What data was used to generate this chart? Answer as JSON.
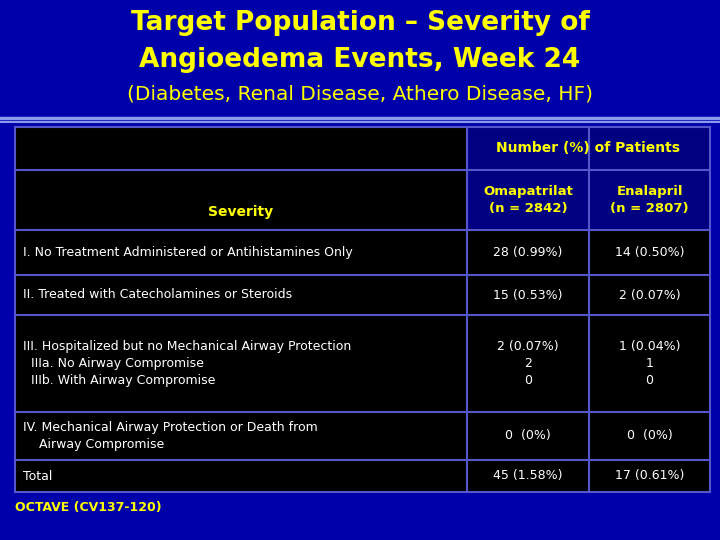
{
  "title_line1": "Target Population – Severity of",
  "title_line2": "Angioedema Events, Week 24",
  "title_line3": "(Diabetes, Renal Disease, Athero Disease, HF)",
  "bg_color": "#0000AA",
  "title_color": "#FFFF00",
  "table_bg": "#000000",
  "table_header_bg": "#000080",
  "table_border_color": "#5555CC",
  "header_text_color": "#FFFF00",
  "body_text_color": "#FFFFFF",
  "footer_text": "OCTAVE (CV137-120)",
  "footer_color": "#FFFF00",
  "sep_line_color": "#6699FF",
  "col_header_row1": "Number (%) of Patients",
  "col_header_omap": "Omapatrilat\n(n = 2842)",
  "col_header_enal": "Enalapril\n(n = 2807)",
  "col_label": "Severity",
  "rows": [
    {
      "label": "I. No Treatment Administered or Antihistamines Only",
      "omap": "28 (0.99%)",
      "enal": "14 (0.50%)",
      "multiline": false
    },
    {
      "label": "II. Treated with Catecholamines or Steroids",
      "omap": "15 (0.53%)",
      "enal": "2 (0.07%)",
      "multiline": false
    },
    {
      "label": "III. Hospitalized but no Mechanical Airway Protection\n  IIIa. No Airway Compromise\n  IIIb. With Airway Compromise",
      "omap": "2 (0.07%)\n2\n0",
      "enal": "1 (0.04%)\n1\n0",
      "multiline": true
    },
    {
      "label": "IV. Mechanical Airway Protection or Death from\n    Airway Compromise",
      "omap": "0  (0%)",
      "enal": "0  (0%)",
      "multiline": true
    },
    {
      "label": "Total",
      "omap": "45 (1.58%)",
      "enal": "17 (0.61%)",
      "multiline": false
    }
  ]
}
